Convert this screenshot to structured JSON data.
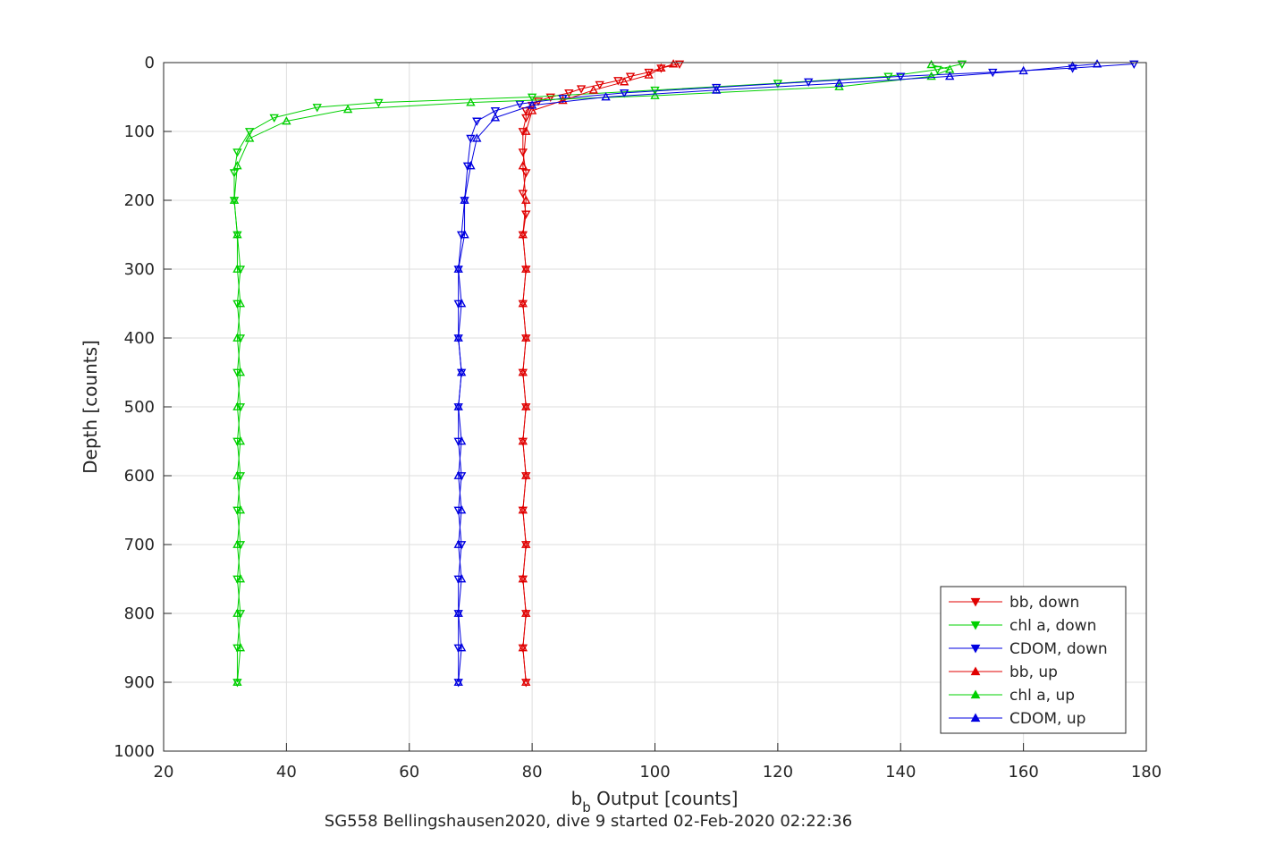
{
  "chart_data": {
    "type": "line",
    "title": "",
    "xlabel_main": "b",
    "xlabel_sub": "b",
    "xlabel_rest": " Output [counts]",
    "ylabel": "Depth [counts]",
    "caption": "SG558 Bellingshausen2020, dive 9 started 02-Feb-2020 02:22:36",
    "xlim": [
      20,
      180
    ],
    "ylim": [
      0,
      1000
    ],
    "y_reversed": true,
    "grid": true,
    "legend_position": "bottom-right",
    "xticks": [
      "20",
      "40",
      "60",
      "80",
      "100",
      "120",
      "140",
      "160",
      "180"
    ],
    "yticks": [
      "0",
      "100",
      "200",
      "300",
      "400",
      "500",
      "600",
      "700",
      "800",
      "900",
      "1000"
    ],
    "series": [
      {
        "name": "bb, down",
        "color": "#e00000",
        "marker": "triangle-down",
        "points": [
          [
            104,
            2
          ],
          [
            101,
            8
          ],
          [
            99,
            14
          ],
          [
            96,
            20
          ],
          [
            94,
            26
          ],
          [
            91,
            32
          ],
          [
            88,
            38
          ],
          [
            86,
            44
          ],
          [
            83,
            50
          ],
          [
            81,
            56
          ],
          [
            80,
            62
          ],
          [
            79,
            70
          ],
          [
            79,
            80
          ],
          [
            78.5,
            100
          ],
          [
            78.5,
            130
          ],
          [
            79,
            160
          ],
          [
            78.5,
            190
          ],
          [
            79,
            220
          ],
          [
            78.5,
            250
          ],
          [
            79,
            300
          ],
          [
            78.5,
            350
          ],
          [
            79,
            400
          ],
          [
            78.5,
            450
          ],
          [
            79,
            500
          ],
          [
            78.5,
            550
          ],
          [
            79,
            600
          ],
          [
            78.5,
            650
          ],
          [
            79,
            700
          ],
          [
            78.5,
            750
          ],
          [
            79,
            800
          ],
          [
            78.5,
            850
          ],
          [
            79,
            900
          ]
        ]
      },
      {
        "name": "chl a, down",
        "color": "#00d000",
        "marker": "triangle-down",
        "points": [
          [
            150,
            2
          ],
          [
            146,
            10
          ],
          [
            138,
            20
          ],
          [
            120,
            30
          ],
          [
            100,
            40
          ],
          [
            80,
            50
          ],
          [
            55,
            58
          ],
          [
            45,
            65
          ],
          [
            38,
            80
          ],
          [
            34,
            100
          ],
          [
            32,
            130
          ],
          [
            31.5,
            160
          ],
          [
            31.5,
            200
          ],
          [
            32,
            250
          ],
          [
            32.5,
            300
          ],
          [
            32,
            350
          ],
          [
            32.5,
            400
          ],
          [
            32,
            450
          ],
          [
            32.5,
            500
          ],
          [
            32,
            550
          ],
          [
            32.5,
            600
          ],
          [
            32,
            650
          ],
          [
            32.5,
            700
          ],
          [
            32,
            750
          ],
          [
            32.5,
            800
          ],
          [
            32,
            850
          ],
          [
            32,
            900
          ]
        ]
      },
      {
        "name": "CDOM, down",
        "color": "#0000e0",
        "marker": "triangle-down",
        "points": [
          [
            178,
            2
          ],
          [
            168,
            8
          ],
          [
            155,
            14
          ],
          [
            140,
            20
          ],
          [
            125,
            28
          ],
          [
            110,
            36
          ],
          [
            95,
            44
          ],
          [
            85,
            52
          ],
          [
            78,
            60
          ],
          [
            74,
            70
          ],
          [
            71,
            85
          ],
          [
            70,
            110
          ],
          [
            69.5,
            150
          ],
          [
            69,
            200
          ],
          [
            68.5,
            250
          ],
          [
            68,
            300
          ],
          [
            68,
            350
          ],
          [
            68,
            400
          ],
          [
            68.5,
            450
          ],
          [
            68,
            500
          ],
          [
            68,
            550
          ],
          [
            68.5,
            600
          ],
          [
            68,
            650
          ],
          [
            68.5,
            700
          ],
          [
            68,
            750
          ],
          [
            68,
            800
          ],
          [
            68,
            850
          ],
          [
            68,
            900
          ]
        ]
      },
      {
        "name": "bb, up",
        "color": "#e00000",
        "marker": "triangle-up",
        "points": [
          [
            79,
            900
          ],
          [
            78.5,
            850
          ],
          [
            79,
            800
          ],
          [
            78.5,
            750
          ],
          [
            79,
            700
          ],
          [
            78.5,
            650
          ],
          [
            79,
            600
          ],
          [
            78.5,
            550
          ],
          [
            79,
            500
          ],
          [
            78.5,
            450
          ],
          [
            79,
            400
          ],
          [
            78.5,
            350
          ],
          [
            79,
            300
          ],
          [
            78.5,
            250
          ],
          [
            79,
            200
          ],
          [
            78.5,
            150
          ],
          [
            79,
            100
          ],
          [
            80,
            70
          ],
          [
            85,
            55
          ],
          [
            90,
            40
          ],
          [
            95,
            28
          ],
          [
            99,
            18
          ],
          [
            101,
            8
          ],
          [
            103,
            2
          ]
        ]
      },
      {
        "name": "chl a, up",
        "color": "#00d000",
        "marker": "triangle-up",
        "points": [
          [
            32,
            900
          ],
          [
            32.5,
            850
          ],
          [
            32,
            800
          ],
          [
            32.5,
            750
          ],
          [
            32,
            700
          ],
          [
            32.5,
            650
          ],
          [
            32,
            600
          ],
          [
            32.5,
            550
          ],
          [
            32,
            500
          ],
          [
            32.5,
            450
          ],
          [
            32,
            400
          ],
          [
            32.5,
            350
          ],
          [
            32,
            300
          ],
          [
            32,
            250
          ],
          [
            31.5,
            200
          ],
          [
            32,
            150
          ],
          [
            34,
            110
          ],
          [
            40,
            85
          ],
          [
            50,
            68
          ],
          [
            70,
            58
          ],
          [
            100,
            48
          ],
          [
            130,
            35
          ],
          [
            145,
            20
          ],
          [
            148,
            10
          ],
          [
            145,
            3
          ]
        ]
      },
      {
        "name": "CDOM, up",
        "color": "#0000e0",
        "marker": "triangle-up",
        "points": [
          [
            68,
            900
          ],
          [
            68.5,
            850
          ],
          [
            68,
            800
          ],
          [
            68.5,
            750
          ],
          [
            68,
            700
          ],
          [
            68.5,
            650
          ],
          [
            68,
            600
          ],
          [
            68.5,
            550
          ],
          [
            68,
            500
          ],
          [
            68.5,
            450
          ],
          [
            68,
            400
          ],
          [
            68.5,
            350
          ],
          [
            68,
            300
          ],
          [
            69,
            250
          ],
          [
            69,
            200
          ],
          [
            70,
            150
          ],
          [
            71,
            110
          ],
          [
            74,
            80
          ],
          [
            80,
            62
          ],
          [
            92,
            50
          ],
          [
            110,
            40
          ],
          [
            130,
            30
          ],
          [
            148,
            20
          ],
          [
            160,
            12
          ],
          [
            168,
            5
          ],
          [
            172,
            2
          ]
        ]
      }
    ]
  }
}
